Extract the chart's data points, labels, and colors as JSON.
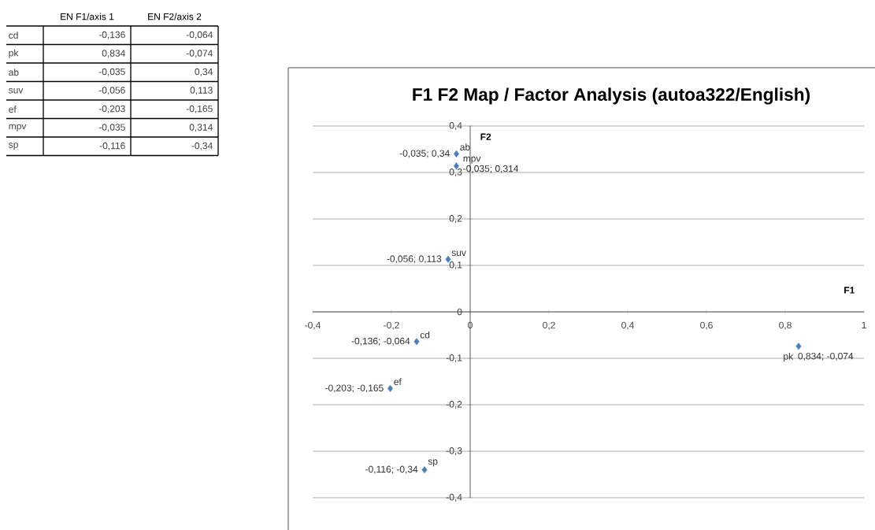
{
  "chart_data": [
    {
      "type": "other",
      "categories": [
        "cd",
        "pk",
        "ab",
        "suv",
        "ef",
        "mpv",
        "sp"
      ],
      "series": [
        {
          "name": "EN F1/axis 1",
          "values": [
            -0.136,
            0.834,
            -0.035,
            -0.056,
            -0.203,
            -0.035,
            -0.116
          ],
          "value_labels": [
            "-0,136",
            "0,834",
            "-0,035",
            "-0,056",
            "-0,203",
            "-0,035",
            "-0,116"
          ]
        },
        {
          "name": "EN F2/axis 2",
          "values": [
            -0.064,
            -0.074,
            0.34,
            0.113,
            -0.165,
            0.314,
            -0.34
          ],
          "value_labels": [
            "-0,064",
            "-0,074",
            "0,34",
            "0,113",
            "-0,165",
            "0,314",
            "-0,34"
          ]
        }
      ]
    },
    {
      "type": "scatter",
      "title": "F1 F2 Map / Factor Analysis (autoa322/English)",
      "xlabel": "F1",
      "ylabel": "F2",
      "marker": "diamond",
      "grid": "y",
      "xlim": [
        -0.4,
        1
      ],
      "ylim": [
        -0.4,
        0.4
      ],
      "xticks": [
        {
          "value": -0.4,
          "label": "-0,4"
        },
        {
          "value": -0.2,
          "label": "-0,2"
        },
        0,
        {
          "value": 0.2,
          "label": "0,2"
        },
        {
          "value": 0.4,
          "label": "0,4"
        },
        {
          "value": 0.6,
          "label": "0,6"
        },
        {
          "value": 0.8,
          "label": "0,8"
        },
        1
      ],
      "yticks": [
        {
          "value": -0.4,
          "label": "-0,4"
        },
        {
          "value": -0.3,
          "label": "-0,3"
        },
        {
          "value": -0.2,
          "label": "-0,2"
        },
        {
          "value": -0.1,
          "label": "-0,1"
        },
        0,
        {
          "value": 0.1,
          "label": "0,1"
        },
        {
          "value": 0.2,
          "label": "0,2"
        },
        {
          "value": 0.3,
          "label": "0,3"
        },
        {
          "value": 0.4,
          "label": "0,4"
        }
      ],
      "series": [
        {
          "name": "cd",
          "color": "#4a7ebb",
          "x": [
            -0.136
          ],
          "values": [
            -0.064
          ],
          "value_labels": [
            "-0,136; -0,064"
          ]
        },
        {
          "name": "pk",
          "color": "#4a7ebb",
          "x": [
            0.834
          ],
          "values": [
            -0.074
          ],
          "value_labels": [
            "0,834; -0,074"
          ]
        },
        {
          "name": "ab",
          "color": "#4a7ebb",
          "x": [
            -0.035
          ],
          "values": [
            0.34
          ],
          "value_labels": [
            "-0,035; 0,34"
          ]
        },
        {
          "name": "suv",
          "color": "#4a7ebb",
          "x": [
            -0.056
          ],
          "values": [
            0.113
          ],
          "value_labels": [
            "-0,056; 0,113"
          ]
        },
        {
          "name": "ef",
          "color": "#4a7ebb",
          "x": [
            -0.203
          ],
          "values": [
            -0.165
          ],
          "value_labels": [
            "-0,203; -0,165"
          ]
        },
        {
          "name": "mpv",
          "color": "#4a7ebb",
          "x": [
            -0.035
          ],
          "values": [
            0.314
          ],
          "value_labels": [
            "-0,035; 0,314"
          ]
        },
        {
          "name": "sp",
          "color": "#4a7ebb",
          "x": [
            -0.116
          ],
          "values": [
            -0.34
          ],
          "value_labels": [
            "-0,116; -0,34"
          ]
        }
      ]
    }
  ]
}
